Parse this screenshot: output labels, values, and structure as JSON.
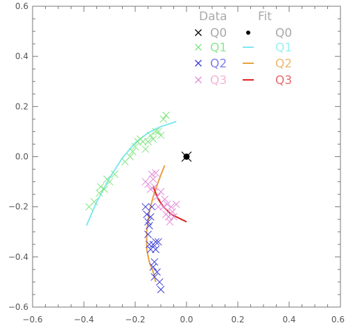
{
  "chart_data": {
    "type": "scatter",
    "title": "",
    "xlabel": "",
    "ylabel": "",
    "xlim": [
      -0.6,
      0.6
    ],
    "ylim": [
      -0.6,
      0.6
    ],
    "xticks": [
      -0.6,
      -0.4,
      -0.2,
      0.0,
      0.2,
      0.4,
      0.6
    ],
    "yticks": [
      -0.6,
      -0.4,
      -0.2,
      0.0,
      0.2,
      0.4,
      0.6
    ],
    "xtick_labels": [
      "−0.6",
      "−0.4",
      "−0.2",
      "0.0",
      "0.2",
      "0.4",
      "0.6"
    ],
    "ytick_labels": [
      "−0.6",
      "−0.4",
      "−0.2",
      "0.0",
      "0.2",
      "0.4",
      "0.6"
    ],
    "grid": false,
    "legend_placement": "top-right",
    "legend": {
      "data_header": "Data",
      "fit_header": "Fit",
      "entries": [
        {
          "data_label": "Q0",
          "fit_label": "Q0",
          "color": "#000000",
          "fit_color": "#000000",
          "data_text_color": "#aaaaaa",
          "fit_text_color": "#aaaaaa"
        },
        {
          "data_label": "Q1",
          "fit_label": "Q1",
          "color": "#7ee57e",
          "fit_color": "#7fe8f0",
          "data_text_color": "#8ee88e",
          "fit_text_color": "#9eeef2"
        },
        {
          "data_label": "Q2",
          "fit_label": "Q2",
          "color": "#3a3ad8",
          "fit_color": "#e8a040",
          "data_text_color": "#7f7ff0",
          "fit_text_color": "#eeb870"
        },
        {
          "data_label": "Q3",
          "fit_label": "Q3",
          "color": "#e08ad8",
          "fit_color": "#e02020",
          "data_text_color": "#f2b6d8",
          "fit_text_color": "#e86b6b"
        }
      ]
    },
    "data_series": [
      {
        "name": "Q0",
        "marker": "x",
        "color": "#000000",
        "x": [
          0.0
        ],
        "y": [
          0.0
        ]
      },
      {
        "name": "Q1",
        "marker": "x",
        "color": "#7ee57e",
        "x": [
          -0.38,
          -0.36,
          -0.34,
          -0.335,
          -0.32,
          -0.31,
          -0.3,
          -0.28,
          -0.24,
          -0.22,
          -0.21,
          -0.2,
          -0.19,
          -0.18,
          -0.17,
          -0.16,
          -0.15,
          -0.14,
          -0.13,
          -0.12,
          -0.11,
          -0.1,
          -0.09,
          -0.08
        ],
        "y": [
          -0.2,
          -0.18,
          -0.145,
          -0.12,
          -0.13,
          -0.09,
          -0.1,
          -0.07,
          -0.02,
          -0.0,
          0.02,
          0.04,
          0.06,
          0.07,
          0.06,
          0.03,
          0.06,
          0.085,
          0.07,
          0.1,
          0.1,
          0.085,
          0.15,
          0.165
        ]
      },
      {
        "name": "Q2",
        "marker": "x",
        "color": "#3a3ad8",
        "x": [
          -0.16,
          -0.155,
          -0.15,
          -0.15,
          -0.145,
          -0.145,
          -0.14,
          -0.14,
          -0.135,
          -0.13,
          -0.13,
          -0.125,
          -0.125,
          -0.12,
          -0.12,
          -0.115,
          -0.11,
          -0.105,
          -0.1
        ],
        "y": [
          -0.2,
          -0.23,
          -0.26,
          -0.31,
          -0.275,
          -0.35,
          -0.37,
          -0.24,
          -0.2,
          -0.44,
          -0.35,
          -0.42,
          -0.48,
          -0.37,
          -0.34,
          -0.46,
          -0.34,
          -0.5,
          -0.53
        ]
      },
      {
        "name": "Q3",
        "marker": "x",
        "color": "#e08ad8",
        "x": [
          -0.16,
          -0.15,
          -0.14,
          -0.135,
          -0.13,
          -0.125,
          -0.12,
          -0.115,
          -0.11,
          -0.1,
          -0.09,
          -0.085,
          -0.08,
          -0.075,
          -0.07,
          -0.065,
          -0.06,
          -0.055,
          -0.05,
          -0.04
        ],
        "y": [
          -0.1,
          -0.11,
          -0.13,
          -0.07,
          -0.09,
          -0.12,
          -0.065,
          -0.16,
          -0.2,
          -0.14,
          -0.2,
          -0.17,
          -0.23,
          -0.19,
          -0.24,
          -0.26,
          -0.2,
          -0.22,
          -0.24,
          -0.19
        ]
      }
    ],
    "fit_series": [
      {
        "name": "Q0",
        "marker": "dot",
        "color": "#000000",
        "x": [
          0.0
        ],
        "y": [
          0.0
        ]
      },
      {
        "name": "Q1",
        "marker": "line",
        "color": "#7fe8f0",
        "x": [
          -0.39,
          -0.35,
          -0.3,
          -0.25,
          -0.2,
          -0.15,
          -0.1,
          -0.04
        ],
        "y": [
          -0.275,
          -0.18,
          -0.085,
          -0.005,
          0.055,
          0.095,
          0.12,
          0.14
        ]
      },
      {
        "name": "Q2",
        "marker": "line",
        "color": "#e8a040",
        "x": [
          -0.085,
          -0.095,
          -0.11,
          -0.13,
          -0.145,
          -0.155,
          -0.155,
          -0.145,
          -0.13,
          -0.12
        ],
        "y": [
          -0.035,
          -0.06,
          -0.1,
          -0.16,
          -0.22,
          -0.3,
          -0.37,
          -0.42,
          -0.46,
          -0.5
        ]
      },
      {
        "name": "Q3",
        "marker": "line",
        "color": "#e02020",
        "x": [
          -0.13,
          -0.11,
          -0.09,
          -0.06,
          -0.02,
          0.0
        ],
        "y": [
          -0.12,
          -0.17,
          -0.2,
          -0.23,
          -0.25,
          -0.26
        ]
      }
    ]
  }
}
